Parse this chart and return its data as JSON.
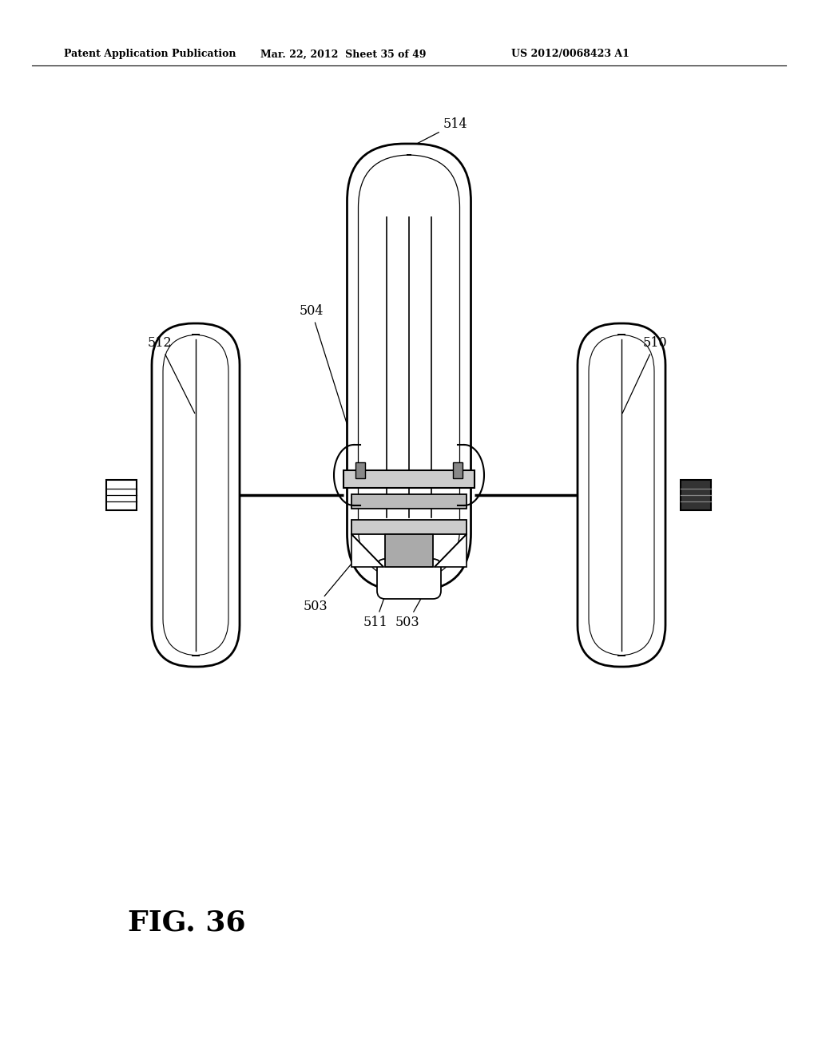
{
  "bg_color": "#ffffff",
  "line_color": "#000000",
  "header_left": "Patent Application Publication",
  "header_mid": "Mar. 22, 2012  Sheet 35 of 49",
  "header_right": "US 2012/0068423 A1",
  "fig_label": "FIG. 36"
}
